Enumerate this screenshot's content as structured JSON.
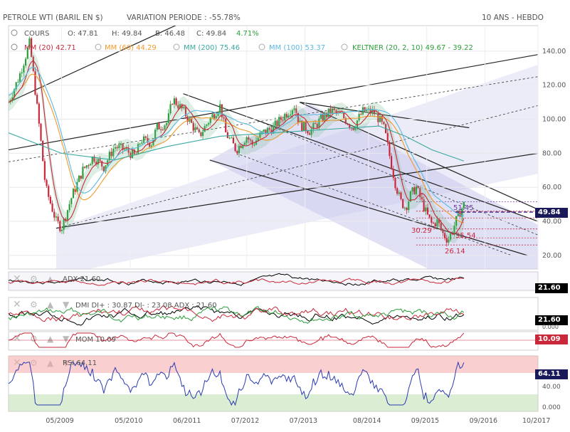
{
  "header": {
    "title": "PETROLE WTI (BARIL EN $)",
    "variation": "VARIATION PERIODE : -55.78%",
    "period": "10 ANS - HEBDO"
  },
  "legend": {
    "cours_label": "COURS",
    "ohlc": {
      "o": "O: 47.81",
      "h": "H: 49.84",
      "b": "B: 46.48",
      "c": "C: 49.84",
      "chg": "4.71%"
    },
    "mm20": "MM (20) 42.71",
    "mm60": "MM (60) 44.29",
    "mm200": "MM (200) 75.46",
    "mm100": "MM (100) 53.37",
    "keltner": "KELTNER (20, 2, 10) 49.67 - 39.22"
  },
  "colors": {
    "up": "#2a9d3a",
    "down": "#c8283a",
    "mm20": "#c8283a",
    "mm60": "#f09a2a",
    "mm200": "#3aa8a0",
    "mm100": "#5cb8e0",
    "fork": "#c8c8ec"
  },
  "panels": {
    "adx": {
      "label": "ADX 21.60",
      "value": "21.60"
    },
    "dmi": {
      "label": "DMI DI+ : 30.87 DI- : 23.08 ADX : 21.60",
      "value": "21.60",
      "zero": "0.000"
    },
    "mom": {
      "label": "MOM 10.09",
      "value": "10.09"
    },
    "rsi": {
      "label": "RSI 64.11",
      "value": "64.11",
      "mid": "40.00",
      "zero": "0.000"
    }
  },
  "annotations": {
    "last_price": "49.84",
    "a1": "51.45",
    "a2": "30.29",
    "a3": "35.54",
    "a4": "26.14"
  },
  "chart_data": {
    "type": "line",
    "title": "PETROLE WTI (BARIL EN $)",
    "x_ticks": [
      "05/2009",
      "05/2010",
      "06/2011",
      "07/2012",
      "07/2013",
      "08/2014",
      "09/2015",
      "09/2016",
      "10/2017"
    ],
    "y_ticks": [
      20,
      40,
      60,
      80,
      100,
      120,
      140
    ],
    "ylim": [
      12,
      155
    ],
    "grid": true,
    "series": [
      {
        "name": "COURS",
        "x": [
          0,
          0.02,
          0.04,
          0.05,
          0.06,
          0.07,
          0.09,
          0.1,
          0.12,
          0.14,
          0.16,
          0.18,
          0.2,
          0.22,
          0.24,
          0.25,
          0.27,
          0.28,
          0.3,
          0.31,
          0.33,
          0.35,
          0.36,
          0.38,
          0.4,
          0.41,
          0.43,
          0.45,
          0.46,
          0.48,
          0.5,
          0.52,
          0.54,
          0.55,
          0.57,
          0.59,
          0.61,
          0.63,
          0.65,
          0.67,
          0.69,
          0.7,
          0.71,
          0.72,
          0.73,
          0.74,
          0.75,
          0.76,
          0.77,
          0.78,
          0.79,
          0.8,
          0.81,
          0.82,
          0.83,
          0.84,
          0.85,
          0.86
        ],
        "values": [
          110,
          125,
          145,
          118,
          90,
          60,
          40,
          36,
          55,
          70,
          78,
          72,
          84,
          82,
          78,
          88,
          86,
          95,
          98,
          112,
          105,
          95,
          90,
          100,
          108,
          92,
          82,
          90,
          85,
          92,
          95,
          102,
          108,
          97,
          93,
          100,
          105,
          102,
          95,
          105,
          104,
          100,
          94,
          78,
          63,
          52,
          48,
          56,
          60,
          52,
          44,
          38,
          40,
          33,
          29,
          36,
          44,
          49.84
        ]
      },
      {
        "name": "MM (200)",
        "x": [
          0,
          0.1,
          0.2,
          0.3,
          0.4,
          0.5,
          0.6,
          0.7,
          0.75,
          0.8,
          0.86
        ],
        "values": [
          92,
          80,
          76,
          84,
          90,
          92,
          94,
          96,
          90,
          82,
          75.46
        ]
      }
    ],
    "indicators": {
      "adx": 21.6,
      "di_plus": 30.87,
      "di_minus": 23.08,
      "mom": 10.09,
      "rsi": 64.11
    }
  }
}
